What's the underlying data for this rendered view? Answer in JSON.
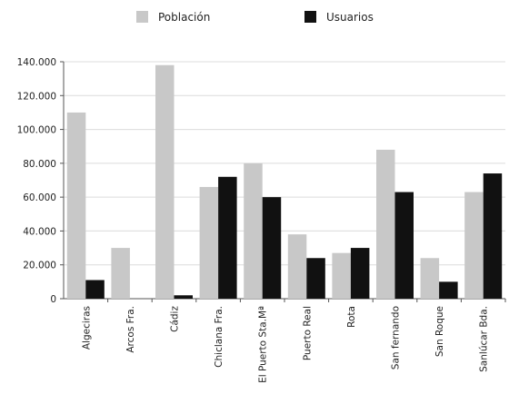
{
  "chart_data": {
    "type": "bar",
    "categories": [
      "Algeciras",
      "Arcos Fra.",
      "Cádiz",
      "Chiclana Fra.",
      "El Puerto Sta.Mª",
      "Puerto Real",
      "Rota",
      "San fernando",
      "San Roque",
      "Sanlúcar Bda."
    ],
    "series": [
      {
        "name": "Población",
        "color": "#c8c8c8",
        "values": [
          110000,
          30000,
          138000,
          66000,
          80000,
          38000,
          27000,
          88000,
          24000,
          63000
        ]
      },
      {
        "name": "Usuarios",
        "color": "#111111",
        "values": [
          11000,
          0,
          2000,
          72000,
          60000,
          24000,
          30000,
          63000,
          10000,
          74000
        ]
      }
    ],
    "y_ticks": [
      "0",
      "20.000",
      "40.000",
      "60.000",
      "80.000",
      "100.000",
      "120.000",
      "140.000"
    ],
    "ylim": [
      0,
      140000
    ],
    "grid": true,
    "legend_position": "top"
  }
}
